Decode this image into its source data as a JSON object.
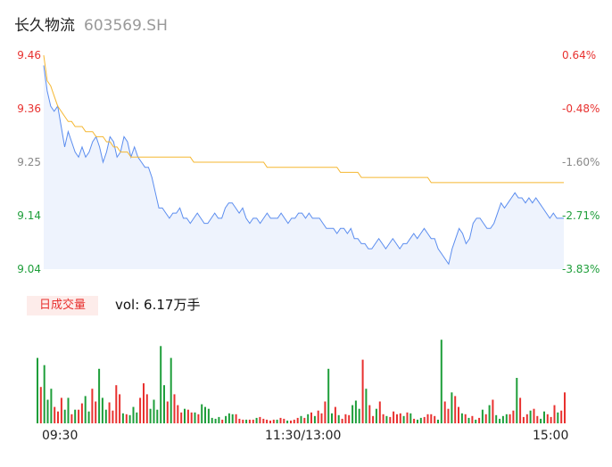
{
  "header": {
    "name": "长久物流",
    "code": "603569.SH"
  },
  "colors": {
    "up": "#e8312f",
    "down": "#1e9e3a",
    "neutral": "#888888",
    "price_line": "#5b8def",
    "avg_line": "#f5b731",
    "area_fill": "#eef3fd"
  },
  "volume": {
    "badge": "日成交量",
    "label": "vol: 6.17万手"
  },
  "chart_data": [
    {
      "type": "line",
      "ylim": [
        9.04,
        9.46
      ],
      "y_ticks": [
        "9.46",
        "9.36",
        "9.25",
        "9.14",
        "9.04"
      ],
      "pct_ticks": [
        "0.64%",
        "-0.48%",
        "-1.60%",
        "-2.71%",
        "-3.83%"
      ],
      "x_ticks": [
        "09:30",
        "11:30/13:00",
        "15:00"
      ],
      "series": [
        {
          "values": [
            9.44,
            9.39,
            9.36,
            9.35,
            9.36,
            9.32,
            9.28,
            9.31,
            9.29,
            9.27,
            9.26,
            9.28,
            9.26,
            9.27,
            9.29,
            9.3,
            9.28,
            9.25,
            9.27,
            9.3,
            9.29,
            9.26,
            9.27,
            9.3,
            9.29,
            9.26,
            9.28,
            9.26,
            9.25,
            9.24,
            9.24,
            9.22,
            9.19,
            9.16,
            9.16,
            9.15,
            9.14,
            9.15,
            9.15,
            9.16,
            9.14,
            9.14,
            9.13,
            9.14,
            9.15,
            9.14,
            9.13,
            9.13,
            9.14,
            9.15,
            9.14,
            9.14,
            9.16,
            9.17,
            9.17,
            9.16,
            9.15,
            9.16,
            9.14,
            9.13,
            9.14,
            9.14,
            9.13,
            9.14,
            9.15,
            9.14,
            9.14,
            9.14,
            9.15,
            9.14,
            9.13,
            9.14,
            9.14,
            9.15,
            9.15,
            9.14,
            9.15,
            9.14,
            9.14,
            9.14,
            9.13,
            9.12,
            9.12,
            9.12,
            9.11,
            9.12,
            9.12,
            9.11,
            9.12,
            9.1,
            9.1,
            9.09,
            9.09,
            9.08,
            9.08,
            9.09,
            9.1,
            9.09,
            9.08,
            9.09,
            9.1,
            9.09,
            9.08,
            9.09,
            9.09,
            9.1,
            9.11,
            9.1,
            9.11,
            9.12,
            9.11,
            9.1,
            9.1,
            9.08,
            9.07,
            9.06,
            9.05,
            9.08,
            9.1,
            9.12,
            9.11,
            9.09,
            9.1,
            9.13,
            9.14,
            9.14,
            9.13,
            9.12,
            9.12,
            9.13,
            9.15,
            9.17,
            9.16,
            9.17,
            9.18,
            9.19,
            9.18,
            9.18,
            9.17,
            9.18,
            9.17,
            9.18,
            9.17,
            9.16,
            9.15,
            9.14,
            9.15,
            9.14,
            9.14,
            9.14
          ]
        },
        {
          "values": [
            9.46,
            9.41,
            9.4,
            9.38,
            9.36,
            9.35,
            9.34,
            9.33,
            9.33,
            9.32,
            9.32,
            9.32,
            9.31,
            9.31,
            9.31,
            9.3,
            9.3,
            9.3,
            9.29,
            9.29,
            9.28,
            9.28,
            9.27,
            9.27,
            9.27,
            9.26,
            9.26,
            9.26,
            9.26,
            9.26,
            9.26,
            9.26,
            9.26,
            9.26,
            9.26,
            9.26,
            9.26,
            9.26,
            9.26,
            9.26,
            9.26,
            9.26,
            9.26,
            9.25,
            9.25,
            9.25,
            9.25,
            9.25,
            9.25,
            9.25,
            9.25,
            9.25,
            9.25,
            9.25,
            9.25,
            9.25,
            9.25,
            9.25,
            9.25,
            9.25,
            9.25,
            9.25,
            9.25,
            9.25,
            9.24,
            9.24,
            9.24,
            9.24,
            9.24,
            9.24,
            9.24,
            9.24,
            9.24,
            9.24,
            9.24,
            9.24,
            9.24,
            9.24,
            9.24,
            9.24,
            9.24,
            9.24,
            9.24,
            9.24,
            9.24,
            9.23,
            9.23,
            9.23,
            9.23,
            9.23,
            9.23,
            9.22,
            9.22,
            9.22,
            9.22,
            9.22,
            9.22,
            9.22,
            9.22,
            9.22,
            9.22,
            9.22,
            9.22,
            9.22,
            9.22,
            9.22,
            9.22,
            9.22,
            9.22,
            9.22,
            9.22,
            9.21,
            9.21,
            9.21,
            9.21,
            9.21,
            9.21,
            9.21,
            9.21,
            9.21,
            9.21,
            9.21,
            9.21,
            9.21,
            9.21,
            9.21,
            9.21,
            9.21,
            9.21,
            9.21,
            9.21,
            9.21,
            9.21,
            9.21,
            9.21,
            9.21,
            9.21,
            9.21,
            9.21,
            9.21,
            9.21,
            9.21,
            9.21,
            9.21,
            9.21,
            9.21,
            9.21,
            9.21,
            9.21,
            9.21
          ]
        }
      ]
    },
    {
      "type": "bar",
      "values": [
        0.72,
        0.4,
        0.64,
        0.26,
        0.38,
        0.18,
        0.13,
        0.28,
        0.15,
        0.28,
        0.1,
        0.15,
        0.15,
        0.22,
        0.3,
        0.13,
        0.38,
        0.24,
        0.6,
        0.28,
        0.15,
        0.23,
        0.14,
        0.42,
        0.32,
        0.11,
        0.1,
        0.09,
        0.18,
        0.12,
        0.28,
        0.44,
        0.32,
        0.16,
        0.26,
        0.15,
        0.85,
        0.42,
        0.24,
        0.72,
        0.32,
        0.2,
        0.12,
        0.16,
        0.15,
        0.12,
        0.12,
        0.1,
        0.21,
        0.18,
        0.16,
        0.06,
        0.05,
        0.07,
        0.04,
        0.08,
        0.11,
        0.1,
        0.1,
        0.05,
        0.04,
        0.04,
        0.04,
        0.04,
        0.06,
        0.07,
        0.05,
        0.04,
        0.03,
        0.04,
        0.04,
        0.06,
        0.05,
        0.03,
        0.03,
        0.04,
        0.06,
        0.08,
        0.06,
        0.1,
        0.12,
        0.08,
        0.14,
        0.11,
        0.24,
        0.6,
        0.11,
        0.18,
        0.09,
        0.05,
        0.1,
        0.09,
        0.2,
        0.25,
        0.16,
        0.7,
        0.38,
        0.2,
        0.08,
        0.16,
        0.24,
        0.1,
        0.08,
        0.07,
        0.13,
        0.1,
        0.11,
        0.08,
        0.12,
        0.11,
        0.05,
        0.04,
        0.06,
        0.07,
        0.1,
        0.1,
        0.08,
        0.04,
        0.92,
        0.24,
        0.16,
        0.34,
        0.3,
        0.18,
        0.11,
        0.1,
        0.06,
        0.08,
        0.04,
        0.06,
        0.15,
        0.1,
        0.2,
        0.26,
        0.09,
        0.05,
        0.08,
        0.1,
        0.1,
        0.14,
        0.5,
        0.28,
        0.07,
        0.1,
        0.14,
        0.16,
        0.08,
        0.05,
        0.13,
        0.1,
        0.07,
        0.2,
        0.12,
        0.14,
        0.34
      ],
      "directions": [
        "down",
        "up",
        "down",
        "down",
        "down",
        "up",
        "up",
        "up",
        "down",
        "down",
        "up",
        "down",
        "up",
        "up",
        "down",
        "down",
        "up",
        "up",
        "down",
        "down",
        "down",
        "up",
        "up",
        "up",
        "up",
        "down",
        "up",
        "down",
        "down",
        "down",
        "up",
        "up",
        "up",
        "down",
        "down",
        "down",
        "down",
        "down",
        "up",
        "down",
        "up",
        "up",
        "up",
        "down",
        "up",
        "up",
        "down",
        "up",
        "down",
        "down",
        "down",
        "down",
        "down",
        "down",
        "up",
        "down",
        "down",
        "down",
        "up",
        "up",
        "up",
        "down",
        "up",
        "up",
        "down",
        "up",
        "up",
        "up",
        "up",
        "up",
        "down",
        "up",
        "up",
        "down",
        "up",
        "up",
        "up",
        "down",
        "up",
        "down",
        "up",
        "down",
        "up",
        "up",
        "up",
        "down",
        "down",
        "up",
        "down",
        "up",
        "up",
        "up",
        "down",
        "down",
        "down",
        "up",
        "down",
        "up",
        "up",
        "down",
        "up",
        "up",
        "down",
        "up",
        "up",
        "up",
        "up",
        "down",
        "up",
        "down",
        "up",
        "down",
        "down",
        "up",
        "up",
        "up",
        "up",
        "down",
        "down",
        "up",
        "up",
        "down",
        "up",
        "up",
        "down",
        "up",
        "down",
        "up",
        "down",
        "up",
        "down",
        "up",
        "down",
        "up",
        "down",
        "down",
        "down",
        "down",
        "up",
        "up",
        "down",
        "up",
        "up",
        "up",
        "down",
        "up",
        "up",
        "down",
        "down",
        "up",
        "up",
        "up",
        "down",
        "up",
        "up",
        "down"
      ]
    }
  ]
}
